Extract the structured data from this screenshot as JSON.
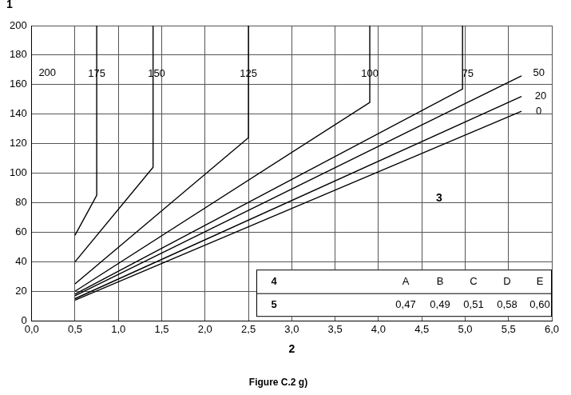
{
  "chart_data": {
    "type": "line",
    "title": "Figure C.2 g)",
    "x_label": "2",
    "y_label": "1",
    "xlim": [
      0,
      6
    ],
    "xticks": [
      {
        "value": 0,
        "label": "0,0"
      },
      {
        "value": 0.5,
        "label": "0,5"
      },
      {
        "value": 1,
        "label": "1,0"
      },
      {
        "value": 1.5,
        "label": "1,5"
      },
      {
        "value": 2,
        "label": "2,0"
      },
      {
        "value": 2.5,
        "label": "2,5"
      },
      {
        "value": 3,
        "label": "3,0"
      },
      {
        "value": 3.5,
        "label": "3,5"
      },
      {
        "value": 4,
        "label": "4,0"
      },
      {
        "value": 4.5,
        "label": "4,5"
      },
      {
        "value": 5,
        "label": "5,0"
      },
      {
        "value": 5.5,
        "label": "5,5"
      },
      {
        "value": 6,
        "label": "6,0"
      }
    ],
    "ylim": [
      0,
      200
    ],
    "yticks": [
      0,
      20,
      40,
      60,
      80,
      100,
      120,
      140,
      160,
      180,
      200
    ],
    "grid": true,
    "line_style": "solid",
    "series": [
      {
        "name": "175",
        "color": "#000000",
        "x": [
          0.5,
          0.75,
          0.75
        ],
        "values": [
          58,
          85,
          200
        ],
        "label_at": [
          0.75,
          167
        ]
      },
      {
        "name": "150",
        "color": "#000000",
        "x": [
          0.5,
          1.4,
          1.4
        ],
        "values": [
          40,
          104,
          200
        ],
        "label_at": [
          1.44,
          167
        ]
      },
      {
        "name": "125",
        "color": "#000000",
        "x": [
          0.5,
          2.5,
          2.5
        ],
        "values": [
          25,
          124,
          200
        ],
        "label_at": [
          2.5,
          167
        ]
      },
      {
        "name": "100",
        "color": "#000000",
        "x": [
          0.5,
          3.9,
          3.9
        ],
        "values": [
          20,
          148,
          200
        ],
        "label_at": [
          3.9,
          167
        ]
      },
      {
        "name": "75",
        "color": "#000000",
        "x": [
          0.5,
          4.97,
          4.97
        ],
        "values": [
          18,
          157,
          200
        ],
        "label_at": [
          5.03,
          167
        ]
      },
      {
        "name": "50",
        "color": "#000000",
        "x": [
          0.5,
          5.65
        ],
        "values": [
          17,
          166
        ],
        "label_at": [
          5.85,
          168
        ]
      },
      {
        "name": "20",
        "color": "#000000",
        "x": [
          0.5,
          5.65
        ],
        "values": [
          15,
          152
        ],
        "label_at": [
          5.87,
          152
        ]
      },
      {
        "name": "0",
        "color": "#000000",
        "x": [
          0.5,
          5.65
        ],
        "values": [
          14,
          142
        ],
        "label_at": [
          5.85,
          142
        ]
      }
    ],
    "annotations": [
      {
        "text": "200",
        "x": 0.18,
        "y": 168
      },
      {
        "text": "3",
        "x": 4.7,
        "y": 83
      }
    ],
    "table": {
      "header": [
        "4",
        "A",
        "B",
        "C",
        "D",
        "E"
      ],
      "rows": [
        [
          "5",
          "0,47",
          "0,49",
          "0,51",
          "0,58",
          "0,60"
        ]
      ]
    }
  }
}
